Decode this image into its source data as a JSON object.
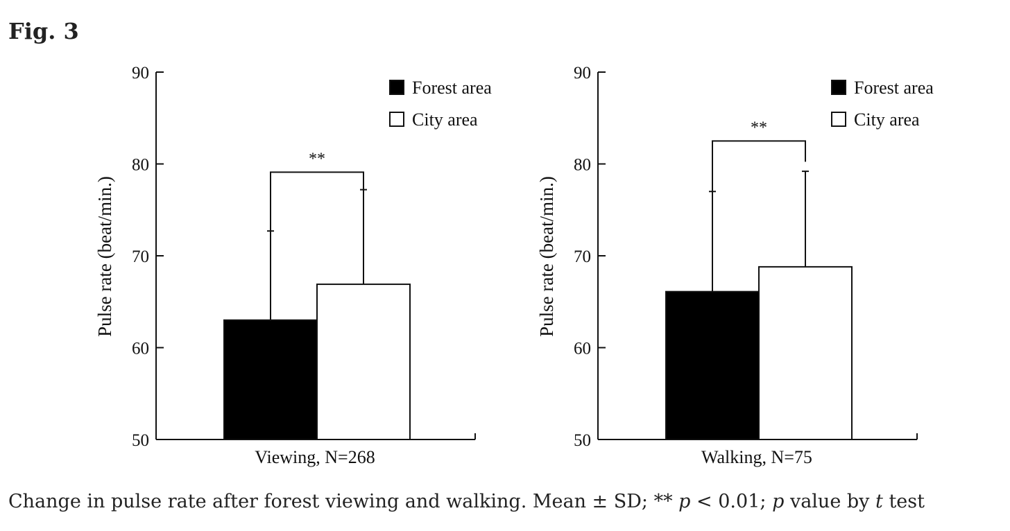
{
  "figure": {
    "label": "Fig. 3",
    "caption": {
      "part1": "Change in pulse rate after forest viewing and walking. Mean ± SD; ** ",
      "p1": "p",
      "part2": " < 0.01; ",
      "p2": "p",
      "part3": " value by ",
      "t": "t",
      "part4": " test"
    }
  },
  "chart_data": [
    {
      "type": "bar",
      "ylabel": "Pulse rate (beat/min.)",
      "xlabel": "Viewing, N=268",
      "ylim": [
        50,
        90
      ],
      "yticks": [
        "50",
        "60",
        "70",
        "80",
        "90"
      ],
      "categories": [
        "Viewing"
      ],
      "series": [
        {
          "name": "Forest area",
          "color": "#000000",
          "values": [
            63.0
          ],
          "sd": [
            9.7
          ]
        },
        {
          "name": "City area",
          "color": "#ffffff",
          "values": [
            66.9
          ],
          "sd": [
            10.3
          ]
        }
      ],
      "significance": {
        "label": "**",
        "y": 79.1
      },
      "legend": [
        "Forest area",
        "City area"
      ],
      "legend_position": "top-right"
    },
    {
      "type": "bar",
      "ylabel": "Pulse rate (beat/min.)",
      "xlabel": "Walking, N=75",
      "ylim": [
        50,
        90
      ],
      "yticks": [
        "50",
        "60",
        "70",
        "80",
        "90"
      ],
      "categories": [
        "Walking"
      ],
      "series": [
        {
          "name": "Forest area",
          "color": "#000000",
          "values": [
            66.1
          ],
          "sd": [
            10.9
          ]
        },
        {
          "name": "City area",
          "color": "#ffffff",
          "values": [
            68.8
          ],
          "sd": [
            10.4
          ]
        }
      ],
      "significance": {
        "label": "**",
        "y": 82.5
      },
      "legend": [
        "Forest area",
        "City area"
      ],
      "legend_position": "top-right"
    }
  ]
}
